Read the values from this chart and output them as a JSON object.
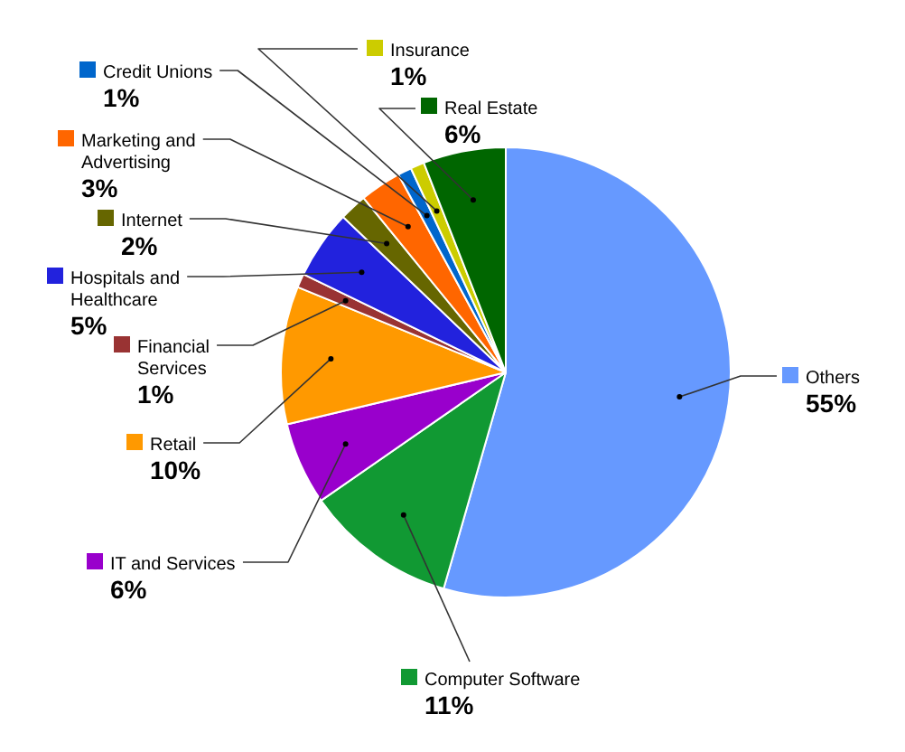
{
  "chart_data": {
    "type": "pie",
    "categories": [
      "Others",
      "Computer Software",
      "IT and Services",
      "Retail",
      "Financial Services",
      "Hospitals and Healthcare",
      "Internet",
      "Marketing and Advertising",
      "Credit Unions",
      "Insurance",
      "Real Estate"
    ],
    "values": [
      55,
      11,
      6,
      10,
      1,
      5,
      2,
      3,
      1,
      1,
      6
    ],
    "value_labels": [
      "55%",
      "11%",
      "6%",
      "10%",
      "1%",
      "5%",
      "2%",
      "3%",
      "1%",
      "1%",
      "6%"
    ],
    "colors": [
      "#6699ff",
      "#119933",
      "#9900cc",
      "#ff9900",
      "#993333",
      "#2222dd",
      "#666600",
      "#ff6600",
      "#0066cc",
      "#cccc00",
      "#006600"
    ],
    "legend": "left"
  }
}
